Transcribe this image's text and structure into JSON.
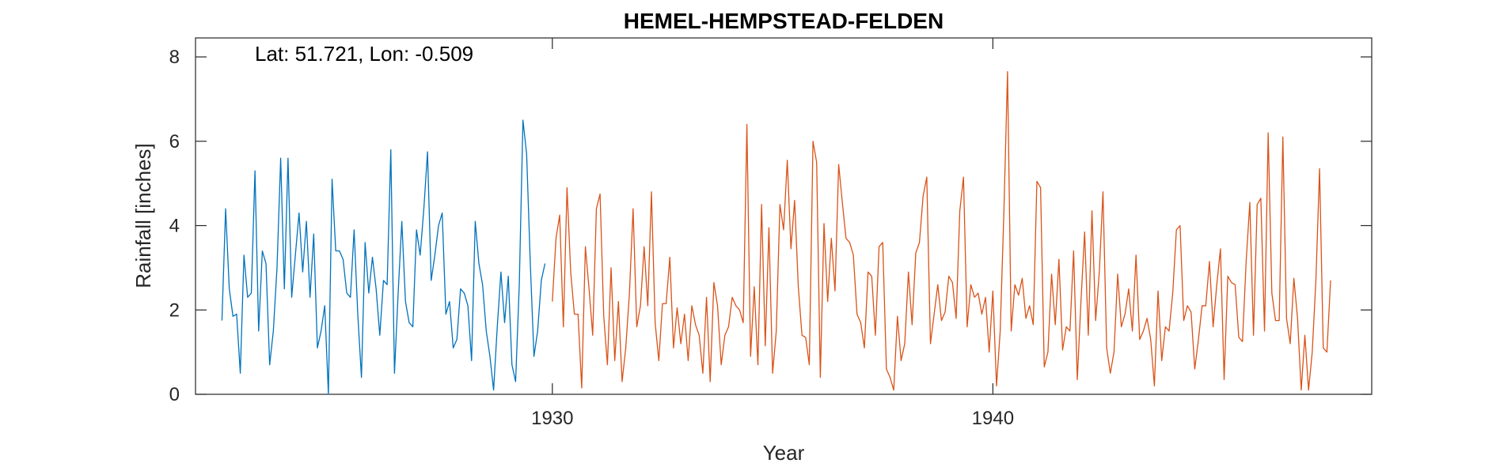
{
  "chart_data": {
    "type": "line",
    "title": "HEMEL-HEMPSTEAD-FELDEN",
    "annotation": "Lat: 51.721, Lon: -0.509",
    "xlabel": "Year",
    "ylabel": "Rainfall [inches]",
    "xlim": [
      1921.9,
      1948.6
    ],
    "ylim": [
      0,
      8.45
    ],
    "xticks": [
      1930,
      1940
    ],
    "yticks": [
      0,
      2,
      4,
      6,
      8
    ],
    "grid": false,
    "series": [
      {
        "color": "#0072BD",
        "x_start": 1922.5,
        "step": 0.08333,
        "values": [
          1.75,
          4.4,
          2.5,
          1.85,
          1.9,
          0.5,
          3.3,
          2.3,
          2.4,
          5.3,
          1.5,
          3.4,
          3.1,
          0.7,
          1.5,
          3.0,
          5.6,
          2.5,
          5.6,
          2.3,
          3.3,
          4.3,
          2.9,
          4.1,
          2.3,
          3.8,
          1.1,
          1.5,
          2.1,
          0.0,
          5.1,
          3.4,
          3.4,
          3.2,
          2.4,
          2.3,
          3.9,
          1.9,
          0.4,
          3.6,
          2.4,
          3.25,
          2.5,
          1.4,
          2.7,
          2.6,
          5.8,
          0.5,
          2.4,
          4.1,
          2.2,
          1.7,
          1.6,
          3.9,
          3.3,
          4.4,
          5.75,
          2.7,
          3.3,
          4.0,
          4.3,
          1.9,
          2.2,
          1.1,
          1.3,
          2.5,
          2.4,
          2.1,
          0.8,
          4.1,
          3.1,
          2.6,
          1.5,
          0.9,
          0.1,
          1.6,
          2.9,
          1.7,
          2.8,
          0.7,
          0.3,
          2.6,
          6.5,
          5.7,
          3.1,
          0.9,
          1.5,
          2.7,
          3.1
        ]
      },
      {
        "color": "#D95319",
        "x_start": 1930.0,
        "step": 0.08333,
        "values": [
          2.2,
          3.7,
          4.25,
          1.6,
          4.9,
          2.9,
          1.9,
          1.9,
          0.15,
          3.5,
          2.5,
          1.4,
          4.4,
          4.75,
          1.85,
          0.7,
          3.0,
          0.8,
          2.2,
          0.3,
          1.1,
          2.4,
          4.4,
          1.6,
          2.1,
          3.5,
          2.1,
          4.8,
          1.7,
          0.8,
          2.15,
          2.15,
          3.25,
          1.1,
          2.05,
          1.2,
          1.9,
          0.8,
          2.1,
          1.65,
          1.4,
          0.5,
          2.3,
          0.3,
          2.65,
          2.1,
          0.7,
          1.4,
          1.6,
          2.3,
          2.1,
          2.0,
          1.7,
          6.4,
          0.9,
          2.55,
          0.7,
          4.5,
          1.15,
          3.95,
          0.5,
          1.5,
          4.5,
          3.9,
          5.55,
          3.45,
          4.6,
          2.55,
          1.4,
          1.35,
          0.7,
          6.0,
          5.5,
          0.4,
          4.05,
          2.2,
          3.7,
          2.45,
          5.45,
          4.55,
          3.7,
          3.6,
          3.3,
          1.9,
          1.7,
          1.1,
          2.9,
          2.8,
          1.4,
          3.5,
          3.6,
          0.6,
          0.4,
          0.1,
          1.85,
          0.8,
          1.2,
          2.9,
          1.65,
          3.35,
          3.6,
          4.7,
          5.15,
          1.2,
          1.9,
          2.6,
          1.75,
          1.95,
          2.8,
          2.65,
          1.8,
          4.35,
          5.15,
          1.6,
          2.6,
          2.3,
          2.4,
          1.9,
          2.3,
          1.0,
          2.45,
          0.2,
          1.5,
          4.3,
          7.65,
          1.5,
          2.6,
          2.35,
          2.75,
          1.8,
          2.1,
          1.65,
          5.05,
          4.9,
          0.65,
          1.0,
          2.85,
          1.65,
          3.2,
          1.05,
          1.6,
          1.5,
          3.4,
          0.35,
          2.2,
          3.85,
          1.4,
          4.35,
          1.75,
          2.9,
          4.8,
          1.1,
          0.5,
          1.0,
          2.85,
          1.6,
          1.9,
          2.5,
          1.5,
          3.3,
          1.3,
          1.5,
          1.8,
          1.3,
          0.2,
          2.45,
          0.8,
          1.6,
          1.5,
          2.4,
          3.9,
          4.0,
          1.75,
          2.1,
          1.95,
          0.6,
          1.3,
          2.1,
          2.1,
          3.15,
          1.6,
          2.6,
          3.45,
          0.35,
          2.8,
          2.65,
          2.6,
          1.35,
          1.25,
          3.15,
          4.55,
          1.4,
          4.5,
          4.65,
          1.5,
          6.2,
          2.4,
          1.75,
          1.75,
          6.1,
          1.8,
          1.2,
          2.75,
          1.8,
          0.1,
          1.4,
          0.1,
          1.0,
          2.7,
          5.35,
          1.1,
          1.0,
          2.7
        ]
      }
    ]
  }
}
